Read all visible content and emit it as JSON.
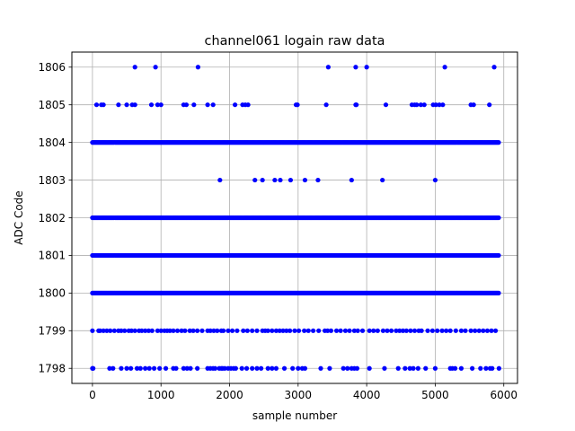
{
  "chart_data": {
    "type": "scatter",
    "title": "channel061 logain raw data",
    "xlabel": "sample number",
    "ylabel": "ADC Code",
    "xlim": [
      -300,
      6200
    ],
    "ylim": [
      1797.6,
      1806.4
    ],
    "xticks": [
      0,
      1000,
      2000,
      3000,
      4000,
      5000,
      6000
    ],
    "yticks": [
      1798,
      1799,
      1800,
      1801,
      1802,
      1803,
      1804,
      1805,
      1806
    ],
    "grid": true,
    "marker_color": "#0000ff",
    "series": [
      {
        "dense_levels": [
          1800,
          1801,
          1802,
          1804
        ],
        "dense_x_range": [
          0,
          5930
        ],
        "sparse_points": {
          "1806": [
            620,
            920,
            1540,
            3440,
            3840,
            4000,
            5140,
            5860
          ],
          "1805": [
            60,
            130,
            160,
            380,
            500,
            580,
            620,
            860,
            950,
            1000,
            1330,
            1370,
            1480,
            1680,
            1760,
            2080,
            2190,
            2230,
            2270,
            2970,
            2990,
            3410,
            3840,
            3850,
            4280,
            4660,
            4700,
            4730,
            4790,
            4840,
            4970,
            5010,
            5060,
            5110,
            5520,
            5560,
            5790
          ],
          "1803": [
            1860,
            2370,
            2480,
            2660,
            2740,
            2890,
            3100,
            3290,
            3780,
            4230,
            5000
          ],
          "1799": [
            0,
            90,
            110,
            160,
            210,
            260,
            320,
            380,
            420,
            470,
            530,
            570,
            620,
            680,
            720,
            770,
            820,
            870,
            950,
            1000,
            1050,
            1090,
            1130,
            1180,
            1240,
            1300,
            1350,
            1420,
            1470,
            1530,
            1600,
            1680,
            1720,
            1770,
            1820,
            1880,
            1910,
            1980,
            2040,
            2110,
            2200,
            2260,
            2330,
            2400,
            2480,
            2520,
            2560,
            2620,
            2680,
            2730,
            2780,
            2830,
            2880,
            2950,
            3010,
            3090,
            3150,
            3220,
            3300,
            3390,
            3430,
            3480,
            3560,
            3620,
            3690,
            3750,
            3820,
            3870,
            3940,
            4040,
            4100,
            4160,
            4240,
            4300,
            4360,
            4430,
            4480,
            4530,
            4580,
            4640,
            4700,
            4760,
            4800,
            4890,
            4960,
            5030,
            5100,
            5160,
            5220,
            5300,
            5380,
            5440,
            5520,
            5580,
            5640,
            5700,
            5760,
            5820,
            5880
          ],
          "1798": [
            0,
            10,
            250,
            300,
            420,
            500,
            560,
            650,
            700,
            770,
            830,
            900,
            980,
            1070,
            1180,
            1220,
            1330,
            1380,
            1430,
            1530,
            1680,
            1720,
            1760,
            1790,
            1850,
            1880,
            1900,
            1930,
            1980,
            2020,
            2060,
            2090,
            2180,
            2250,
            2330,
            2400,
            2460,
            2560,
            2620,
            2680,
            2800,
            2920,
            3000,
            3060,
            3100,
            3330,
            3460,
            3660,
            3720,
            3780,
            3820,
            3860,
            4040,
            4260,
            4460,
            4560,
            4630,
            4680,
            4750,
            4860,
            5000,
            5220,
            5250,
            5290,
            5380,
            5540,
            5660,
            5740,
            5800,
            5830,
            5930
          ]
        }
      }
    ]
  }
}
